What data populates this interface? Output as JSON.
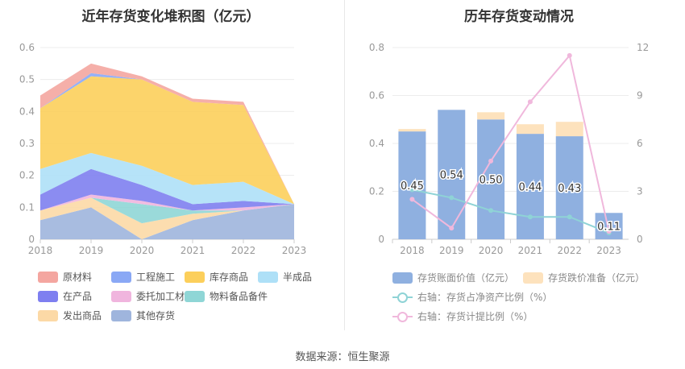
{
  "left": {
    "title": "近年存货变化堆积图（亿元）",
    "legend": [
      {
        "label": "原材料",
        "color": "#f4a6a0"
      },
      {
        "label": "工程施工",
        "color": "#8aa8f5"
      },
      {
        "label": "库存商品",
        "color": "#fccf5b"
      },
      {
        "label": "半成品",
        "color": "#aee0f7"
      },
      {
        "label": "在产品",
        "color": "#7e7ff0"
      },
      {
        "label": "委托加工材料",
        "color": "#f0b5de"
      },
      {
        "label": "物料备品备件",
        "color": "#8fd6d6"
      },
      {
        "label": "发出商品",
        "color": "#fcd9a6"
      },
      {
        "label": "其他存货",
        "color": "#9fb5dd"
      }
    ]
  },
  "right": {
    "title": "历年存货变动情况",
    "legend": [
      {
        "label": "存货账面价值（亿元）",
        "color": "#8fb0e0"
      },
      {
        "label": "存货跌价准备（亿元）",
        "color": "#fde2bd"
      },
      {
        "label": "右轴：存货占净资产比例（%）",
        "color": "#8fd3d6"
      },
      {
        "label": "右轴：存货计提比例（%）",
        "color": "#f0b8dc"
      }
    ]
  },
  "source": "数据来源：恒生聚源",
  "chart_data": [
    {
      "type": "area",
      "stacked": true,
      "title": "近年存货变化堆积图（亿元）",
      "x": [
        "2018",
        "2019",
        "2020",
        "2021",
        "2022",
        "2023"
      ],
      "ylim": [
        0,
        0.6
      ],
      "yticks": [
        "0",
        "0.1",
        "0.2",
        "0.3",
        "0.4",
        "0.5",
        "0.6"
      ],
      "grid": true,
      "legend_position": "bottom",
      "series": [
        {
          "name": "其他存货",
          "color": "#9fb5dd",
          "values": [
            0.06,
            0.1,
            0.0,
            0.06,
            0.09,
            0.11
          ]
        },
        {
          "name": "发出商品",
          "color": "#fcd9a6",
          "values": [
            0.03,
            0.03,
            0.05,
            0.02,
            0.0,
            0.0
          ]
        },
        {
          "name": "物料备品备件",
          "color": "#8fd6d6",
          "values": [
            0.0,
            0.0,
            0.06,
            0.01,
            0.0,
            0.0
          ]
        },
        {
          "name": "委托加工材料",
          "color": "#f0b5de",
          "values": [
            0.0,
            0.01,
            0.01,
            0.0,
            0.01,
            0.0
          ]
        },
        {
          "name": "在产品",
          "color": "#7e7ff0",
          "values": [
            0.05,
            0.08,
            0.05,
            0.02,
            0.02,
            0.0
          ]
        },
        {
          "name": "半成品",
          "color": "#aee0f7",
          "values": [
            0.08,
            0.05,
            0.06,
            0.06,
            0.06,
            0.0
          ]
        },
        {
          "name": "库存商品",
          "color": "#fccf5b",
          "values": [
            0.19,
            0.24,
            0.27,
            0.26,
            0.24,
            0.0
          ]
        },
        {
          "name": "工程施工",
          "color": "#8aa8f5",
          "values": [
            0.0,
            0.01,
            0.0,
            0.0,
            0.0,
            0.0
          ]
        },
        {
          "name": "原材料",
          "color": "#f4a6a0",
          "values": [
            0.04,
            0.03,
            0.01,
            0.01,
            0.01,
            0.0
          ]
        }
      ]
    },
    {
      "type": "bar",
      "title": "历年存货变动情况",
      "categories": [
        "2018",
        "2019",
        "2020",
        "2021",
        "2022",
        "2023"
      ],
      "ylim": [
        0,
        0.8
      ],
      "yticks": [
        "0",
        "0.2",
        "0.4",
        "0.6",
        "0.8"
      ],
      "y2lim": [
        0,
        12
      ],
      "y2ticks": [
        "0",
        "3",
        "6",
        "9",
        "12"
      ],
      "grid": true,
      "legend_position": "bottom",
      "series": [
        {
          "name": "存货账面价值（亿元）",
          "kind": "bar",
          "color": "#8fb0e0",
          "values": [
            0.45,
            0.54,
            0.5,
            0.44,
            0.43,
            0.11
          ],
          "labels": [
            "0.45",
            "0.54",
            "0.50",
            "0.44",
            "0.43",
            "0.11"
          ]
        },
        {
          "name": "存货跌价准备（亿元）",
          "kind": "bar",
          "color": "#fde2bd",
          "values": [
            0.01,
            0.0,
            0.03,
            0.04,
            0.06,
            0.0
          ]
        },
        {
          "name": "右轴：存货占净资产比例（%）",
          "kind": "line",
          "axis": "right",
          "color": "#8fd3d6",
          "values": [
            3.1,
            2.6,
            1.8,
            1.4,
            1.4,
            0.4
          ]
        },
        {
          "name": "右轴：存货计提比例（%）",
          "kind": "line",
          "axis": "right",
          "color": "#f0b8dc",
          "values": [
            2.5,
            0.7,
            4.9,
            8.6,
            11.5,
            0.5
          ]
        }
      ]
    }
  ]
}
